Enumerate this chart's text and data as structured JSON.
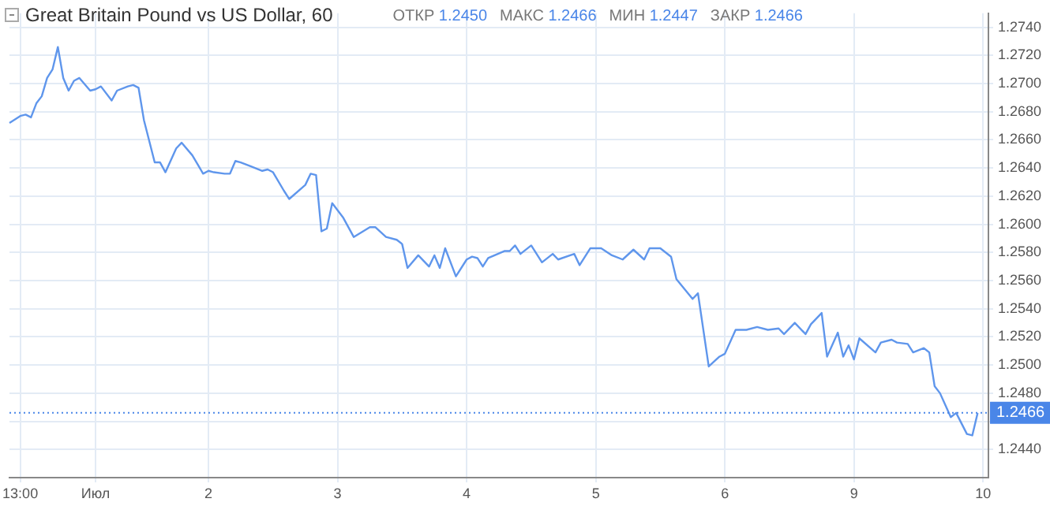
{
  "chart_data": {
    "type": "line",
    "title": "Great Britain Pound vs US Dollar, 60",
    "annotations": [
      "ОТКР 1.2450",
      "МАКС 1.2466",
      "МИН 1.2447",
      "ЗАКР 1.2466"
    ],
    "categories": [
      null,
      null,
      "13:00",
      null,
      null,
      null,
      null,
      null,
      null,
      null,
      null,
      null,
      null,
      null,
      null,
      null,
      "Июл",
      null,
      null,
      null,
      null,
      null,
      null,
      null,
      null,
      null,
      null,
      null,
      null,
      null,
      null,
      null,
      null,
      null,
      null,
      null,
      null,
      "2",
      null,
      null,
      null,
      null,
      null,
      null,
      null,
      null,
      null,
      null,
      null,
      null,
      null,
      null,
      null,
      null,
      null,
      null,
      null,
      null,
      null,
      null,
      null,
      "3",
      null,
      null,
      null,
      null,
      null,
      null,
      null,
      null,
      null,
      null,
      null,
      null,
      null,
      null,
      null,
      null,
      null,
      null,
      null,
      null,
      null,
      null,
      null,
      "4",
      null,
      null,
      null,
      null,
      null,
      null,
      null,
      null,
      null,
      null,
      null,
      null,
      null,
      null,
      null,
      null,
      null,
      null,
      null,
      null,
      null,
      null,
      null,
      "5",
      null,
      null,
      null,
      null,
      null,
      null,
      null,
      null,
      null,
      null,
      null,
      null,
      null,
      null,
      null,
      null,
      null,
      null,
      null,
      null,
      null,
      null,
      null,
      "6",
      null,
      null,
      null,
      null,
      null,
      null,
      null,
      null,
      null,
      null,
      null,
      null,
      null,
      null,
      null,
      null,
      null,
      null,
      null,
      null,
      null,
      null,
      null,
      "9",
      null,
      null,
      null,
      null,
      null,
      null,
      null,
      null,
      null,
      null,
      null,
      null,
      null,
      null,
      null,
      null,
      null,
      null,
      null,
      null,
      null,
      null,
      null,
      "10",
      null
    ],
    "ylim": [
      1.242,
      1.275
    ],
    "yticks": [
      {
        "value": 1.244,
        "label": "1.2440"
      },
      {
        "value": 1.246,
        "label": null
      },
      {
        "value": 1.248,
        "label": "1.2480"
      },
      {
        "value": 1.25,
        "label": "1.2500"
      },
      {
        "value": 1.252,
        "label": "1.2520"
      },
      {
        "value": 1.254,
        "label": "1.2540"
      },
      {
        "value": 1.256,
        "label": "1.2560"
      },
      {
        "value": 1.258,
        "label": "1.2580"
      },
      {
        "value": 1.26,
        "label": "1.2600"
      },
      {
        "value": 1.262,
        "label": "1.2620"
      },
      {
        "value": 1.264,
        "label": "1.2640"
      },
      {
        "value": 1.266,
        "label": "1.2660"
      },
      {
        "value": 1.268,
        "label": "1.2680"
      },
      {
        "value": 1.27,
        "label": "1.2700"
      },
      {
        "value": 1.272,
        "label": "1.2720"
      },
      {
        "value": 1.274,
        "label": "1.2740"
      }
    ],
    "grid": true,
    "legend": false,
    "marker": "none",
    "line_style": "solid",
    "ref_lines": [
      {
        "axis": "y",
        "value": 1.2466,
        "label": "1.2466",
        "color": "#4a86e8",
        "line_style": "dotted"
      }
    ],
    "series": [
      {
        "color": "#5f96ec",
        "values": [
          1.2672,
          null,
          1.2677,
          1.2678,
          1.2676,
          1.2686,
          1.2691,
          1.2704,
          1.271,
          1.2726,
          1.2704,
          1.2695,
          1.2702,
          1.2704,
          null,
          1.2695,
          1.2696,
          1.2698,
          null,
          1.2688,
          1.2695,
          null,
          1.2698,
          1.2699,
          1.2697,
          1.2674,
          null,
          1.2644,
          1.2644,
          1.2637,
          null,
          1.2654,
          1.2658,
          null,
          1.2649,
          null,
          1.2636,
          1.2638,
          1.2637,
          null,
          1.2636,
          1.2636,
          1.2645,
          1.2644,
          null,
          1.2641,
          null,
          1.2638,
          1.2639,
          1.2637,
          null,
          1.2624,
          1.2618,
          null,
          null,
          1.2628,
          1.2636,
          1.2635,
          1.2595,
          1.2597,
          1.2615,
          null,
          1.2605,
          null,
          1.2591,
          null,
          null,
          1.2598,
          1.2598,
          null,
          1.2591,
          null,
          1.2589,
          1.2586,
          1.2569,
          null,
          1.2578,
          null,
          1.257,
          1.2578,
          1.2569,
          1.2583,
          null,
          1.2563,
          null,
          1.2575,
          1.2577,
          1.2576,
          1.257,
          1.2576,
          null,
          null,
          1.2581,
          1.2581,
          1.2585,
          1.2579,
          null,
          1.2585,
          null,
          1.2573,
          null,
          1.2579,
          1.2575,
          null,
          null,
          1.2579,
          1.2571,
          null,
          1.2583,
          null,
          1.2583,
          null,
          1.2578,
          null,
          1.2575,
          null,
          1.2582,
          null,
          1.2575,
          1.2583,
          null,
          1.2583,
          null,
          1.2577,
          1.2561,
          null,
          null,
          1.2547,
          1.2551,
          null,
          1.2499,
          null,
          1.2506,
          1.2508,
          null,
          1.2525,
          null,
          1.2525,
          null,
          1.2527,
          null,
          1.2525,
          null,
          1.2526,
          1.2522,
          null,
          1.253,
          null,
          1.2522,
          1.2529,
          null,
          1.2537,
          1.2506,
          null,
          1.2523,
          1.2506,
          1.2514,
          1.2504,
          1.2519,
          null,
          null,
          1.2509,
          1.2516,
          null,
          1.2518,
          1.2516,
          null,
          1.2515,
          1.2509,
          null,
          1.2512,
          1.2509,
          1.2485,
          1.248,
          null,
          1.2463,
          1.2466,
          null,
          1.2451,
          1.245,
          1.2466,
          null,
          null
        ]
      }
    ]
  }
}
